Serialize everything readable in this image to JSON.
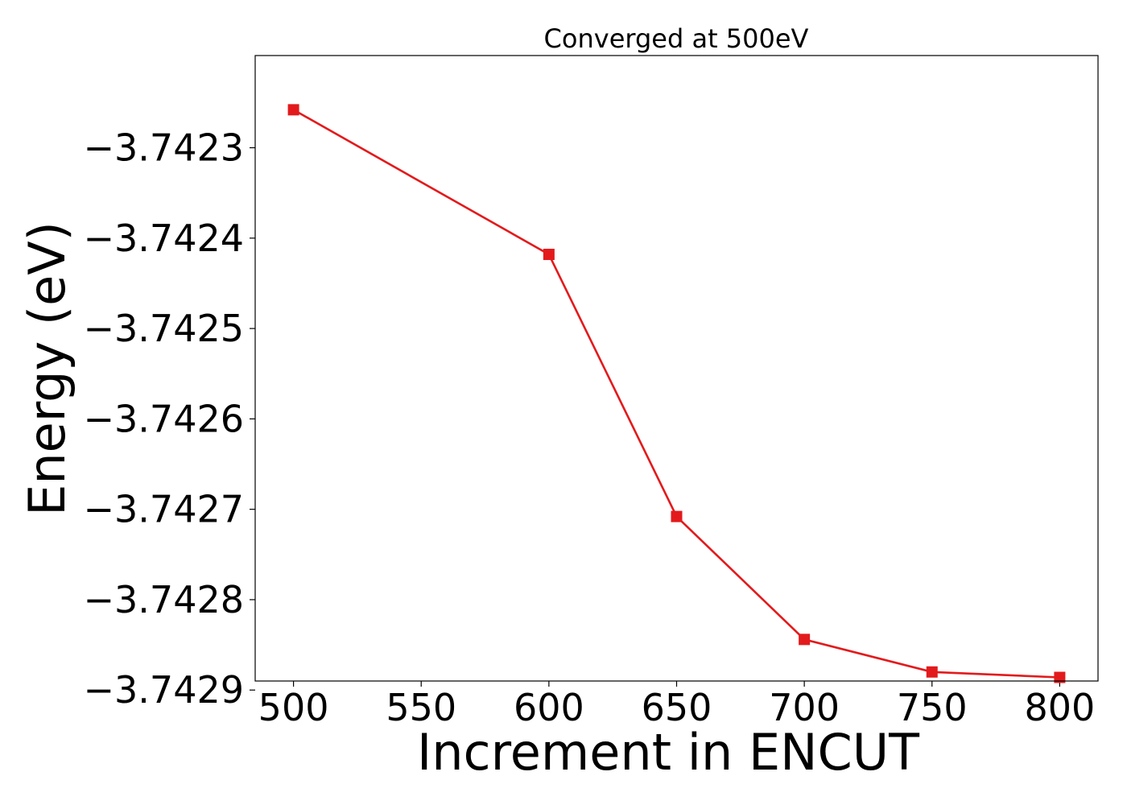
{
  "chart_data": {
    "type": "line",
    "title": "Converged at 500eV",
    "xlabel": "Increment in ENCUT",
    "ylabel": "Energy (eV)",
    "x": [
      500,
      600,
      650,
      700,
      750,
      800
    ],
    "series": [
      {
        "values": [
          -3.742258,
          -3.742418,
          -3.742708,
          -3.742844,
          -3.74288,
          -3.742886
        ],
        "color": "#e31a1c",
        "marker": "square"
      }
    ],
    "xlim": [
      485,
      815
    ],
    "ylim": [
      -3.74289,
      -3.742198
    ],
    "x_ticks": [
      500,
      550,
      600,
      650,
      700,
      750,
      800
    ],
    "x_tick_labels": [
      "500",
      "550",
      "600",
      "650",
      "700",
      "750",
      "800"
    ],
    "y_ticks": [
      -3.7423,
      -3.7424,
      -3.7425,
      -3.7426,
      -3.7427,
      -3.7428,
      -3.7429
    ],
    "y_tick_labels": [
      "−3.7423",
      "−3.7424",
      "−3.7425",
      "−3.7426",
      "−3.7427",
      "−3.7428",
      "−3.7429"
    ],
    "grid": false,
    "legend": "none"
  }
}
